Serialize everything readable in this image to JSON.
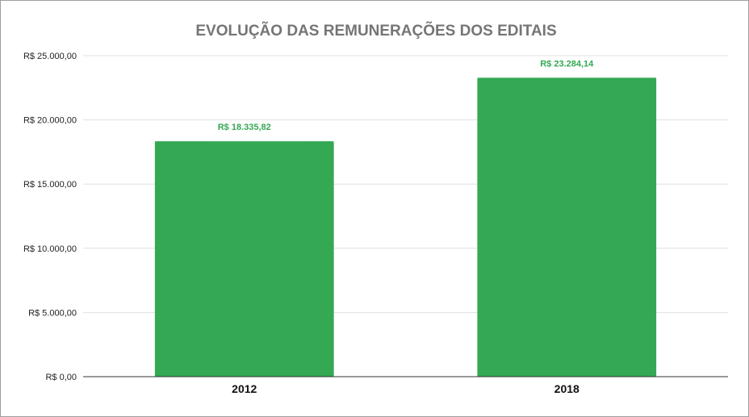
{
  "chart_data": {
    "type": "bar",
    "title": "EVOLUÇÃO DAS REMUNERAÇÕES DOS EDITAIS",
    "xlabel": "",
    "ylabel": "",
    "categories": [
      "2012",
      "2018"
    ],
    "values": [
      18335.82,
      23284.14
    ],
    "data_labels": [
      "R$ 18.335,82",
      "R$ 23.284,14"
    ],
    "ylim": [
      0,
      25000
    ],
    "yticks": [
      0,
      5000,
      10000,
      15000,
      20000,
      25000
    ],
    "ytick_labels": [
      "R$ 0,00",
      "R$ 5.000,00",
      "R$ 10.000,00",
      "R$ 15.000,00",
      "R$ 20.000,00",
      "R$ 25.000,00"
    ],
    "grid": true,
    "legend": "none",
    "colors": {
      "bar": "#34a853",
      "data_label": "#34a853",
      "title": "#757575"
    }
  }
}
